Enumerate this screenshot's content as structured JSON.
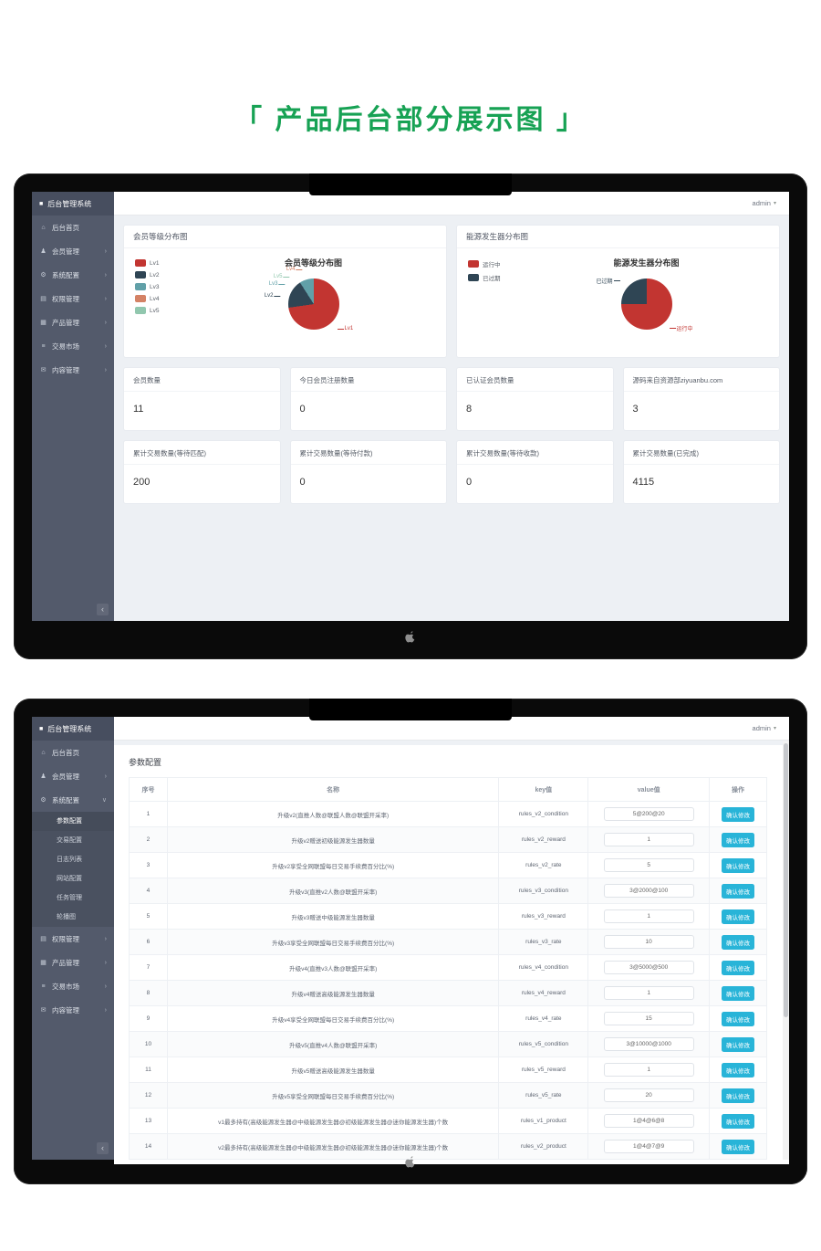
{
  "page_title": "「 产品后台部分展示图 」",
  "accent_green": "#17a254",
  "app": {
    "brand": "后台管理系统",
    "user": "admin",
    "menu": [
      {
        "icon": "home-icon",
        "label": "后台首页",
        "arrow": false
      },
      {
        "icon": "user-icon",
        "label": "会员管理",
        "arrow": true
      },
      {
        "icon": "gear-icon",
        "label": "系统配置",
        "arrow": true,
        "children": [
          "参数配置",
          "交易配置",
          "日志列表",
          "网站配置",
          "任务管理",
          "轮播图"
        ]
      },
      {
        "icon": "grid-icon",
        "label": "权限管理",
        "arrow": true
      },
      {
        "icon": "product-icon",
        "label": "产品管理",
        "arrow": true
      },
      {
        "icon": "market-icon",
        "label": "交易市场",
        "arrow": true
      },
      {
        "icon": "mail-icon",
        "label": "内容管理",
        "arrow": true
      }
    ]
  },
  "chart_data": [
    {
      "type": "pie",
      "title": "会员等级分布图",
      "labels": [
        "Lv1",
        "Lv2",
        "Lv3",
        "Lv4",
        "Lv5"
      ],
      "values": [
        8,
        2,
        1,
        0,
        0
      ],
      "colors": [
        "#c23531",
        "#2f4554",
        "#61a0a8",
        "#d48265",
        "#91c7ae"
      ],
      "legend_position": "left"
    },
    {
      "type": "pie",
      "title": "能源发生器分布图",
      "labels": [
        "运行中",
        "已过期"
      ],
      "values": [
        3,
        1
      ],
      "colors": [
        "#c23531",
        "#2f4554"
      ],
      "legend_position": "left"
    }
  ],
  "dashboard": {
    "stats": [
      {
        "label": "会员数量",
        "value": "11"
      },
      {
        "label": "今日会员注册数量",
        "value": "0"
      },
      {
        "label": "已认证会员数量",
        "value": "8"
      },
      {
        "label": "源码来自资源部ziyuanbu.com",
        "value": "3"
      },
      {
        "label": "累计交易数量(等待匹配)",
        "value": "200"
      },
      {
        "label": "累计交易数量(等待付款)",
        "value": "0"
      },
      {
        "label": "累计交易数量(等待收款)",
        "value": "0"
      },
      {
        "label": "累计交易数量(已完成)",
        "value": "4115"
      }
    ]
  },
  "config_page": {
    "title": "参数配置",
    "table": {
      "headers": [
        "序号",
        "名称",
        "key值",
        "value值",
        "操作"
      ],
      "action_label": "确认修改",
      "rows": [
        {
          "no": "1",
          "name": "升级v2(直推人数@联盟人数@联盟开采率)",
          "key": "rules_v2_condition",
          "value": "5@200@20"
        },
        {
          "no": "2",
          "name": "升级v2赠送初级能源发生器数量",
          "key": "rules_v2_reward",
          "value": "1"
        },
        {
          "no": "3",
          "name": "升级v2享受全网联盟每日交易手续费百分比(%)",
          "key": "rules_v2_rate",
          "value": "5"
        },
        {
          "no": "4",
          "name": "升级v3(直推v2人数@联盟开采率)",
          "key": "rules_v3_condition",
          "value": "3@2000@100"
        },
        {
          "no": "5",
          "name": "升级v3赠送中级能源发生器数量",
          "key": "rules_v3_reward",
          "value": "1"
        },
        {
          "no": "6",
          "name": "升级v3享受全网联盟每日交易手续费百分比(%)",
          "key": "rules_v3_rate",
          "value": "10"
        },
        {
          "no": "7",
          "name": "升级v4(直推v3人数@联盟开采率)",
          "key": "rules_v4_condition",
          "value": "3@5000@500"
        },
        {
          "no": "8",
          "name": "升级v4赠送高级能源发生器数量",
          "key": "rules_v4_reward",
          "value": "1"
        },
        {
          "no": "9",
          "name": "升级v4享受全网联盟每日交易手续费百分比(%)",
          "key": "rules_v4_rate",
          "value": "15"
        },
        {
          "no": "10",
          "name": "升级v5(直推v4人数@联盟开采率)",
          "key": "rules_v5_condition",
          "value": "3@10000@1000"
        },
        {
          "no": "11",
          "name": "升级v5赠送高级能源发生器数量",
          "key": "rules_v5_reward",
          "value": "1"
        },
        {
          "no": "12",
          "name": "升级v5享受全网联盟每日交易手续费百分比(%)",
          "key": "rules_v5_rate",
          "value": "20"
        },
        {
          "no": "13",
          "name": "v1最多持有(高级能源发生器@中级能源发生器@初级能源发生器@迷你能源发生器)个数",
          "key": "rules_v1_product",
          "value": "1@4@6@8"
        },
        {
          "no": "14",
          "name": "v2最多持有(高级能源发生器@中级能源发生器@初级能源发生器@迷你能源发生器)个数",
          "key": "rules_v2_product",
          "value": "1@4@7@9"
        }
      ]
    }
  }
}
